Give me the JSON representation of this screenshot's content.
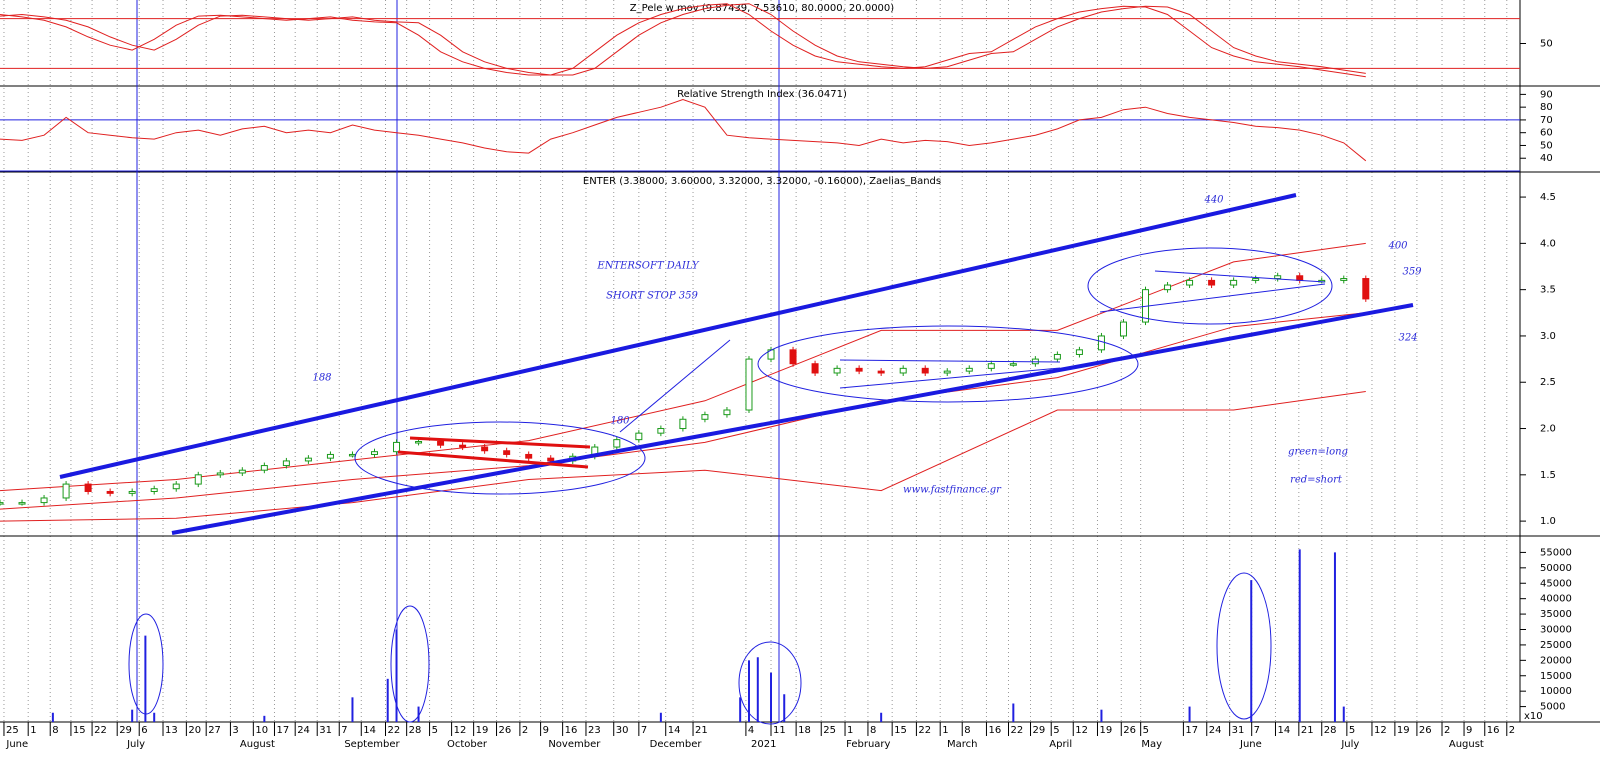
{
  "chart_data": [
    {
      "type": "line",
      "title": "Z_Pele w mov (9.87439, 7.53610, 80.0000, 20.0000)",
      "xlim": [
        0,
        345
      ],
      "ylim": [
        0,
        100
      ],
      "yticks": [
        50
      ],
      "levels": [
        80,
        20
      ],
      "level_color": "#e02020",
      "x": [
        0,
        5,
        10,
        15,
        20,
        25,
        30,
        35,
        40,
        45,
        50,
        55,
        60,
        65,
        70,
        75,
        80,
        85,
        90,
        95,
        100,
        105,
        110,
        115,
        120,
        125,
        130,
        135,
        140,
        145,
        150,
        155,
        160,
        165,
        170,
        175,
        180,
        185,
        190,
        195,
        200,
        205,
        210,
        215,
        220,
        225,
        230,
        235,
        240,
        245,
        250,
        255,
        260,
        265,
        270,
        275,
        280,
        285,
        290,
        295,
        300,
        305,
        310
      ],
      "series": [
        {
          "color": "#e02020",
          "values": [
            85,
            82,
            78,
            70,
            58,
            48,
            42,
            55,
            72,
            83,
            84,
            82,
            80,
            78,
            80,
            82,
            78,
            76,
            75,
            60,
            40,
            28,
            20,
            15,
            12,
            12,
            20,
            40,
            60,
            75,
            85,
            92,
            96,
            98,
            85,
            65,
            48,
            35,
            28,
            25,
            22,
            20,
            22,
            30,
            38,
            40,
            55,
            70,
            80,
            88,
            92,
            95,
            94,
            85,
            65,
            45,
            35,
            28,
            25,
            22,
            18,
            14,
            10
          ]
        },
        {
          "color": "#e02020",
          "values": [
            83,
            85,
            82,
            78,
            70,
            58,
            48,
            42,
            55,
            72,
            83,
            84,
            82,
            80,
            78,
            80,
            82,
            78,
            76,
            75,
            60,
            40,
            28,
            20,
            15,
            12,
            12,
            20,
            40,
            60,
            75,
            85,
            92,
            96,
            98,
            85,
            65,
            48,
            35,
            28,
            25,
            22,
            20,
            22,
            30,
            38,
            40,
            55,
            70,
            80,
            88,
            92,
            95,
            94,
            85,
            65,
            45,
            35,
            28,
            25,
            22,
            18,
            14
          ]
        }
      ]
    },
    {
      "type": "line",
      "title": "Relative Strength Index (36.0471)",
      "xlim": [
        0,
        345
      ],
      "ylim": [
        30,
        95
      ],
      "yticks": [
        40,
        50,
        60,
        70,
        80,
        90
      ],
      "levels": [
        70,
        30
      ],
      "level_color": "#2020e0",
      "x": [
        0,
        5,
        10,
        15,
        20,
        25,
        30,
        35,
        40,
        45,
        50,
        55,
        60,
        65,
        70,
        75,
        80,
        85,
        90,
        95,
        100,
        105,
        110,
        115,
        120,
        125,
        130,
        135,
        140,
        145,
        150,
        155,
        160,
        165,
        170,
        175,
        180,
        185,
        190,
        195,
        200,
        205,
        210,
        215,
        220,
        225,
        230,
        235,
        240,
        245,
        250,
        255,
        260,
        265,
        270,
        275,
        280,
        285,
        290,
        295,
        300,
        305,
        310
      ],
      "series": [
        {
          "color": "#e02020",
          "values": [
            55,
            54,
            58,
            72,
            60,
            58,
            56,
            55,
            60,
            62,
            58,
            63,
            65,
            60,
            62,
            60,
            66,
            62,
            60,
            58,
            55,
            52,
            48,
            45,
            44,
            55,
            60,
            66,
            72,
            76,
            80,
            86,
            80,
            58,
            56,
            55,
            54,
            53,
            52,
            50,
            55,
            52,
            54,
            53,
            50,
            52,
            55,
            58,
            63,
            70,
            72,
            78,
            80,
            75,
            72,
            70,
            68,
            65,
            64,
            62,
            58,
            52,
            38
          ]
        }
      ]
    },
    {
      "type": "candlestick",
      "title": "ENTER (3.38000, 3.60000, 3.32000, 3.32000, -0.16000), Zaelias_Bands",
      "xlim": [
        0,
        345
      ],
      "ylim": [
        0.85,
        4.76
      ],
      "yticks": [
        {
          "value": 1.0,
          "label": "1.0"
        },
        1.5,
        {
          "value": 2.0,
          "label": "2.0"
        },
        2.5,
        {
          "value": 3.0,
          "label": "3.0"
        },
        3.5,
        {
          "value": 4.0,
          "label": "4.0"
        },
        4.5
      ],
      "up_color": "#1a9a1a",
      "down_color": "#e01010",
      "x": [
        0,
        5,
        10,
        15,
        20,
        25,
        30,
        35,
        40,
        45,
        50,
        55,
        60,
        65,
        70,
        75,
        80,
        85,
        90,
        95,
        100,
        105,
        110,
        115,
        120,
        125,
        130,
        135,
        140,
        145,
        150,
        155,
        160,
        165,
        170,
        175,
        180,
        185,
        190,
        195,
        200,
        205,
        210,
        215,
        220,
        225,
        230,
        235,
        240,
        245,
        250,
        255,
        260,
        265,
        270,
        275,
        280,
        285,
        290,
        295,
        300,
        305,
        310
      ],
      "values": [
        1.2,
        1.2,
        1.25,
        1.4,
        1.32,
        1.3,
        1.32,
        1.35,
        1.4,
        1.5,
        1.52,
        1.55,
        1.6,
        1.65,
        1.68,
        1.72,
        1.72,
        1.75,
        1.85,
        1.86,
        1.82,
        1.8,
        1.76,
        1.72,
        1.68,
        1.65,
        1.7,
        1.8,
        1.88,
        1.95,
        2.0,
        2.1,
        2.15,
        2.2,
        2.75,
        2.85,
        2.7,
        2.6,
        2.65,
        2.62,
        2.6,
        2.65,
        2.6,
        2.62,
        2.65,
        2.7,
        2.7,
        2.75,
        2.8,
        2.85,
        3.0,
        3.15,
        3.5,
        3.55,
        3.6,
        3.55,
        3.6,
        3.62,
        3.65,
        3.6,
        3.6,
        3.62,
        3.4
      ],
      "bands": {
        "x": [
          0,
          40,
          80,
          120,
          160,
          200,
          240,
          280,
          310
        ],
        "color": "#e02020",
        "series": [
          {
            "values": [
              1.33,
              1.45,
              1.66,
              1.87,
              2.3,
              3.06,
              3.06,
              3.8,
              4.0
            ]
          },
          {
            "values": [
              1.13,
              1.25,
              1.45,
              1.6,
              1.85,
              2.3,
              2.55,
              3.1,
              3.25
            ]
          },
          {
            "values": [
              1.0,
              1.03,
              1.2,
              1.45,
              1.55,
              1.33,
              2.2,
              2.2,
              2.4
            ]
          }
        ]
      },
      "xticks": [
        {
          "value": 0.9,
          "label": "25"
        },
        {
          "value": 6.4,
          "label": "1"
        },
        {
          "value": 11.4,
          "label": "8"
        },
        {
          "value": 16.1,
          "label": "15"
        },
        {
          "value": 20.9,
          "label": "22"
        },
        {
          "value": 26.6,
          "label": "29"
        },
        {
          "value": 31.6,
          "label": "6"
        },
        {
          "value": 37,
          "label": "13"
        },
        {
          "value": 42.3,
          "label": "20"
        },
        {
          "value": 46.8,
          "label": "27"
        },
        {
          "value": 52.3,
          "label": "3"
        },
        {
          "value": 57.5,
          "label": "10"
        },
        {
          "value": 62.3,
          "label": "17"
        },
        {
          "value": 67,
          "label": "24"
        },
        {
          "value": 72,
          "label": "31"
        },
        {
          "value": 77,
          "label": "7"
        },
        {
          "value": 82,
          "label": "14"
        },
        {
          "value": 87.5,
          "label": "22"
        },
        {
          "value": 92.3,
          "label": "28"
        },
        {
          "value": 97.5,
          "label": "5"
        },
        {
          "value": 102.5,
          "label": "12"
        },
        {
          "value": 107.5,
          "label": "19"
        },
        {
          "value": 112.7,
          "label": "26"
        },
        {
          "value": 118,
          "label": "2"
        },
        {
          "value": 122.7,
          "label": "9"
        },
        {
          "value": 127.7,
          "label": "16"
        },
        {
          "value": 133,
          "label": "23"
        },
        {
          "value": 139.3,
          "label": "30"
        },
        {
          "value": 145,
          "label": "7"
        },
        {
          "value": 151.1,
          "label": "14"
        },
        {
          "value": 157.3,
          "label": "21"
        },
        {
          "value": 169.3,
          "label": "4"
        },
        {
          "value": 175,
          "label": "11"
        },
        {
          "value": 180.7,
          "label": "18"
        },
        {
          "value": 186.4,
          "label": "25"
        },
        {
          "value": 191.8,
          "label": "1"
        },
        {
          "value": 197,
          "label": "8"
        },
        {
          "value": 202.5,
          "label": "15"
        },
        {
          "value": 208,
          "label": "22"
        },
        {
          "value": 213.4,
          "label": "1"
        },
        {
          "value": 218.4,
          "label": "8"
        },
        {
          "value": 223.9,
          "label": "16"
        },
        {
          "value": 228.9,
          "label": "22"
        },
        {
          "value": 233.9,
          "label": "29"
        },
        {
          "value": 238.6,
          "label": "5"
        },
        {
          "value": 243.6,
          "label": "12"
        },
        {
          "value": 249.1,
          "label": "19"
        },
        {
          "value": 254.5,
          "label": "26"
        },
        {
          "value": 258.9,
          "label": "5"
        },
        {
          "value": 268.6,
          "label": "17"
        },
        {
          "value": 273.9,
          "label": "24"
        },
        {
          "value": 279.1,
          "label": "31"
        },
        {
          "value": 284.1,
          "label": "7"
        },
        {
          "value": 289.5,
          "label": "14"
        },
        {
          "value": 294.8,
          "label": "21"
        },
        {
          "value": 300,
          "label": "28"
        },
        {
          "value": 305.7,
          "label": "5"
        },
        {
          "value": 311.4,
          "label": "12"
        },
        {
          "value": 316.6,
          "label": "19"
        },
        {
          "value": 321.6,
          "label": "26"
        },
        {
          "value": 327.3,
          "label": "2"
        },
        {
          "value": 332.3,
          "label": "9"
        },
        {
          "value": 337,
          "label": "16"
        },
        {
          "value": 342,
          "label": "2"
        }
      ],
      "months": [
        {
          "value": 1,
          "label": "June"
        },
        {
          "value": 28.4,
          "label": "July"
        },
        {
          "value": 54,
          "label": "August"
        },
        {
          "value": 77.7,
          "label": "September"
        },
        {
          "value": 101,
          "label": "October"
        },
        {
          "value": 124,
          "label": "November"
        },
        {
          "value": 147,
          "label": "December"
        },
        {
          "value": 170,
          "label": "2021"
        },
        {
          "value": 191.6,
          "label": "February"
        },
        {
          "value": 214.5,
          "label": "March"
        },
        {
          "value": 237.7,
          "label": "April"
        },
        {
          "value": 258.6,
          "label": "May"
        },
        {
          "value": 281,
          "label": "June"
        },
        {
          "value": 304,
          "label": "July"
        },
        {
          "value": 328.4,
          "label": "August"
        }
      ],
      "annotations": [
        "ENTERSOFT DAILY",
        "SHORT STOP 359",
        "188",
        "180",
        "440",
        "400",
        "359",
        "324",
        "green=long",
        "red=short",
        "www.fastfinance.gr"
      ]
    },
    {
      "type": "bar",
      "xlim": [
        0,
        345
      ],
      "ylim": [
        0,
        60000
      ],
      "color": "#2020e0",
      "unit_label": "x10",
      "yticks": [
        5000,
        10000,
        15000,
        20000,
        25000,
        30000,
        35000,
        40000,
        45000,
        50000,
        55000
      ],
      "x": [
        12,
        30,
        33,
        35,
        60,
        80,
        88,
        90,
        95,
        150,
        168,
        170,
        172,
        175,
        178,
        200,
        230,
        250,
        270,
        284,
        295,
        303,
        305
      ],
      "values": [
        3000,
        4000,
        28000,
        3000,
        2000,
        8000,
        14000,
        30000,
        5000,
        3000,
        8000,
        20000,
        21000,
        16000,
        9000,
        3000,
        6000,
        4000,
        5000,
        46000,
        56000,
        55000,
        5000
      ]
    }
  ]
}
